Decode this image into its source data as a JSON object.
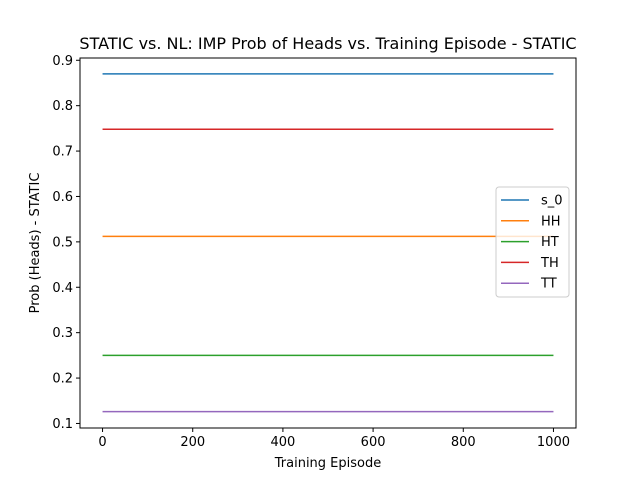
{
  "chart_data": {
    "type": "line",
    "title": "STATIC vs. NL: IMP Prob of Heads vs. Training Episode - STATIC",
    "xlabel": "Training Episode",
    "ylabel": "Prob (Heads) - STATIC",
    "xlim": [
      -50,
      1050
    ],
    "ylim": [
      0.09,
      0.905
    ],
    "x_ticks": [
      0,
      200,
      400,
      600,
      800,
      1000
    ],
    "y_ticks": [
      0.1,
      0.2,
      0.3,
      0.4,
      0.5,
      0.6,
      0.7,
      0.8,
      0.9
    ],
    "x_tick_labels": [
      "0",
      "200",
      "400",
      "600",
      "800",
      "1000"
    ],
    "y_tick_labels": [
      "0.1",
      "0.2",
      "0.3",
      "0.4",
      "0.5",
      "0.6",
      "0.7",
      "0.8",
      "0.9"
    ],
    "x": [
      0,
      1000
    ],
    "series": [
      {
        "name": "s_0",
        "color": "#1f77b4",
        "values": [
          0.87,
          0.87
        ]
      },
      {
        "name": "HH",
        "color": "#ff7f0e",
        "values": [
          0.512,
          0.512
        ]
      },
      {
        "name": "HT",
        "color": "#2ca02c",
        "values": [
          0.25,
          0.25
        ]
      },
      {
        "name": "TH",
        "color": "#d62728",
        "values": [
          0.748,
          0.748
        ]
      },
      {
        "name": "TT",
        "color": "#9467bd",
        "values": [
          0.126,
          0.126
        ]
      }
    ],
    "legend_position": "center-right",
    "grid": false
  }
}
